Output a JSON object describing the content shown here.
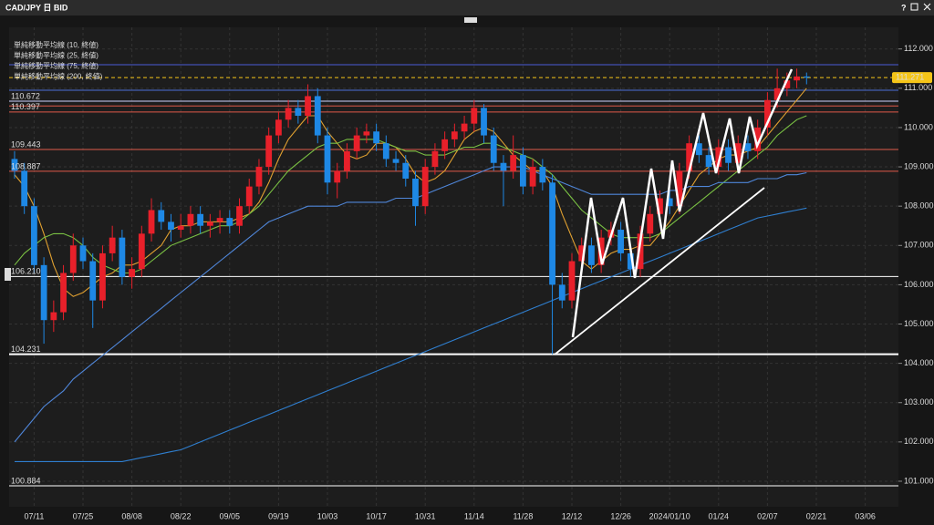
{
  "window": {
    "help": "?"
  },
  "chart_data": {
    "type": "candlestick",
    "title": "CAD/JPY 日 BID",
    "categories": [
      null,
      null,
      "07/11",
      null,
      null,
      null,
      null,
      "07/25",
      null,
      null,
      null,
      null,
      "08/08",
      null,
      null,
      null,
      null,
      "08/22",
      null,
      null,
      null,
      null,
      "09/05",
      null,
      null,
      null,
      null,
      "09/19",
      null,
      null,
      null,
      null,
      "10/03",
      null,
      null,
      null,
      null,
      "10/17",
      null,
      null,
      null,
      null,
      "10/31",
      null,
      null,
      null,
      null,
      "11/14",
      null,
      null,
      null,
      null,
      "11/28",
      null,
      null,
      null,
      null,
      "12/12",
      null,
      null,
      null,
      null,
      "12/26",
      null,
      null,
      null,
      null,
      "2024/01/10",
      null,
      null,
      null,
      null,
      "01/24",
      null,
      null,
      null,
      null,
      "02/07",
      null,
      null,
      null,
      null,
      "02/21",
      null,
      null,
      null,
      null,
      "03/06"
    ],
    "open": [
      109.2,
      108.9,
      108.0,
      106.5,
      105.1,
      105.3,
      106.3,
      107.0,
      106.6,
      105.6,
      106.8,
      107.2,
      106.2,
      106.4,
      107.3,
      107.9,
      107.6,
      107.4,
      107.5,
      107.8,
      107.5,
      107.6,
      107.7,
      107.5,
      108.0,
      108.5,
      109.0,
      109.8,
      110.2,
      110.5,
      110.3,
      110.8,
      109.8,
      108.6,
      108.9,
      109.4,
      109.8,
      109.9,
      109.6,
      109.2,
      109.1,
      108.7,
      108.0,
      109.0,
      109.4,
      109.7,
      109.9,
      110.1,
      110.5,
      109.8,
      109.1,
      108.9,
      109.3,
      108.5,
      109.0,
      108.6,
      106.0,
      105.6,
      106.6,
      107.0,
      106.5,
      107.2,
      107.4,
      106.8,
      106.4,
      107.3,
      107.8,
      108.2,
      108.0,
      108.9,
      109.6,
      109.3,
      109.0,
      109.5,
      109.1,
      109.6,
      109.4,
      110.0,
      110.7,
      111.0,
      111.2,
      111.3,
      null,
      null,
      null,
      null,
      null,
      null
    ],
    "high": [
      109.4,
      109.1,
      108.2,
      106.7,
      105.6,
      106.5,
      107.3,
      107.2,
      106.8,
      107.0,
      107.5,
      107.4,
      106.7,
      107.5,
      108.2,
      108.1,
      107.8,
      107.8,
      108.0,
      108.0,
      107.8,
      107.9,
      107.9,
      108.2,
      108.7,
      109.2,
      110.0,
      110.4,
      110.7,
      110.7,
      111.1,
      111.0,
      110.0,
      109.1,
      109.6,
      110.0,
      110.1,
      110.1,
      109.8,
      109.4,
      109.3,
      108.9,
      109.2,
      109.6,
      109.9,
      110.1,
      110.3,
      110.7,
      110.6,
      110.0,
      109.3,
      109.8,
      109.5,
      109.2,
      109.2,
      108.8,
      106.3,
      106.8,
      107.2,
      107.2,
      107.4,
      107.6,
      107.6,
      107.0,
      107.5,
      108.0,
      108.4,
      108.4,
      109.1,
      109.8,
      109.8,
      109.5,
      109.7,
      109.7,
      109.8,
      109.8,
      110.2,
      110.9,
      111.5,
      111.4,
      111.5,
      111.4,
      null,
      null,
      null,
      null,
      null,
      null
    ],
    "low": [
      108.7,
      107.8,
      106.3,
      104.5,
      104.8,
      105.1,
      106.1,
      106.4,
      104.9,
      105.4,
      106.6,
      106.0,
      105.9,
      106.2,
      107.1,
      107.4,
      107.1,
      107.2,
      107.3,
      107.3,
      107.2,
      107.3,
      107.3,
      107.3,
      107.8,
      108.3,
      108.8,
      109.6,
      110.0,
      110.1,
      110.1,
      109.6,
      108.3,
      108.2,
      108.7,
      109.2,
      109.6,
      109.4,
      109.0,
      108.9,
      108.5,
      107.5,
      107.8,
      108.8,
      109.2,
      109.5,
      109.7,
      109.9,
      109.6,
      108.9,
      108.0,
      108.7,
      108.3,
      108.3,
      108.4,
      104.231,
      105.4,
      105.4,
      106.4,
      106.3,
      106.3,
      107.0,
      106.6,
      106.2,
      106.2,
      107.1,
      107.6,
      107.8,
      107.8,
      108.7,
      109.1,
      108.8,
      108.8,
      108.9,
      108.9,
      109.2,
      109.2,
      109.8,
      110.5,
      110.8,
      111.0,
      111.1,
      null,
      null,
      null,
      null,
      null,
      null
    ],
    "close": [
      108.9,
      108.0,
      106.5,
      105.1,
      105.3,
      106.3,
      107.0,
      106.6,
      105.6,
      106.8,
      107.2,
      106.2,
      106.4,
      107.3,
      107.9,
      107.6,
      107.4,
      107.5,
      107.8,
      107.5,
      107.6,
      107.7,
      107.5,
      108.0,
      108.5,
      109.0,
      109.8,
      110.2,
      110.5,
      110.3,
      110.8,
      109.8,
      108.6,
      108.9,
      109.4,
      109.8,
      109.9,
      109.6,
      109.2,
      109.1,
      108.7,
      108.0,
      109.0,
      109.4,
      109.7,
      109.9,
      110.1,
      110.5,
      109.8,
      109.1,
      108.9,
      109.3,
      108.5,
      109.0,
      108.6,
      106.0,
      105.6,
      106.6,
      107.0,
      106.5,
      107.2,
      107.4,
      106.8,
      106.4,
      107.3,
      107.8,
      108.2,
      108.0,
      108.9,
      109.6,
      109.3,
      109.0,
      109.5,
      109.1,
      109.6,
      109.4,
      110.0,
      110.7,
      111.0,
      111.2,
      111.3,
      111.271,
      null,
      null,
      null,
      null,
      null,
      null
    ],
    "up_color": "#e8202a",
    "down_color": "#1e88e5",
    "series": [
      {
        "name": "単純移動平均線 (10, 終値)",
        "color": "#e0a030",
        "values": [
          108.8,
          108.5,
          108.0,
          107.3,
          106.5,
          105.9,
          105.7,
          105.8,
          106.0,
          106.2,
          106.3,
          106.5,
          106.5,
          106.6,
          106.8,
          107.0,
          107.4,
          107.5,
          107.5,
          107.6,
          107.6,
          107.6,
          107.6,
          107.7,
          107.8,
          108.1,
          108.6,
          109.2,
          109.7,
          110.0,
          110.3,
          110.3,
          109.9,
          109.6,
          109.3,
          109.2,
          109.3,
          109.6,
          109.6,
          109.5,
          109.2,
          108.8,
          108.6,
          108.7,
          108.9,
          109.3,
          109.7,
          109.9,
          110.0,
          109.9,
          109.6,
          109.3,
          109.1,
          108.9,
          108.9,
          108.5,
          107.8,
          107.2,
          106.6,
          106.4,
          106.6,
          106.8,
          106.9,
          106.9,
          107.0,
          107.0,
          107.3,
          107.6,
          108.0,
          108.4,
          108.8,
          109.0,
          109.2,
          109.3,
          109.3,
          109.4,
          109.5,
          109.8,
          110.1,
          110.4,
          110.7,
          111.0,
          null,
          null,
          null,
          null,
          null,
          null
        ]
      },
      {
        "name": "単純移動平均線 (25, 終値)",
        "color": "#7ac143",
        "values": [
          106.5,
          106.8,
          107.0,
          107.2,
          107.3,
          107.3,
          107.2,
          107.0,
          106.7,
          106.5,
          106.4,
          106.3,
          106.3,
          106.4,
          106.6,
          106.8,
          107.0,
          107.1,
          107.2,
          107.3,
          107.4,
          107.5,
          107.5,
          107.6,
          107.8,
          108.0,
          108.3,
          108.6,
          108.9,
          109.1,
          109.3,
          109.5,
          109.6,
          109.6,
          109.7,
          109.7,
          109.7,
          109.7,
          109.6,
          109.5,
          109.4,
          109.4,
          109.3,
          109.3,
          109.3,
          109.4,
          109.5,
          109.5,
          109.6,
          109.6,
          109.5,
          109.4,
          109.3,
          109.2,
          109.0,
          108.8,
          108.5,
          108.2,
          107.9,
          107.7,
          107.5,
          107.3,
          107.2,
          107.2,
          107.2,
          107.2,
          107.3,
          107.5,
          107.7,
          107.9,
          108.1,
          108.3,
          108.5,
          108.7,
          108.9,
          109.1,
          109.3,
          109.5,
          109.8,
          110.0,
          110.2,
          110.3,
          null,
          null,
          null,
          null,
          null,
          null
        ]
      },
      {
        "name": "単純移動平均線 (75, 終値)",
        "color": "#4f86d9",
        "values": [
          102.0,
          102.3,
          102.6,
          102.9,
          103.1,
          103.3,
          103.6,
          103.8,
          104.0,
          104.2,
          104.4,
          104.6,
          104.8,
          105.0,
          105.2,
          105.4,
          105.6,
          105.8,
          106.0,
          106.2,
          106.4,
          106.6,
          106.8,
          107.0,
          107.2,
          107.4,
          107.6,
          107.7,
          107.8,
          107.9,
          108.0,
          108.0,
          108.0,
          108.0,
          108.1,
          108.1,
          108.1,
          108.1,
          108.1,
          108.2,
          108.2,
          108.2,
          108.3,
          108.4,
          108.5,
          108.6,
          108.7,
          108.8,
          108.9,
          109.0,
          109.0,
          109.0,
          109.0,
          108.9,
          108.8,
          108.7,
          108.6,
          108.5,
          108.4,
          108.3,
          108.3,
          108.3,
          108.3,
          108.3,
          108.3,
          108.3,
          108.3,
          108.4,
          108.4,
          108.5,
          108.5,
          108.5,
          108.6,
          108.6,
          108.6,
          108.6,
          108.7,
          108.7,
          108.7,
          108.8,
          108.8,
          108.85,
          null,
          null,
          null,
          null,
          null,
          null
        ]
      },
      {
        "name": "単純移動平均線 (200, 終値)",
        "color": "#2f7fd0",
        "values": [
          101.5,
          101.5,
          101.5,
          101.5,
          101.5,
          101.5,
          101.5,
          101.5,
          101.5,
          101.5,
          101.5,
          101.5,
          101.55,
          101.6,
          101.65,
          101.7,
          101.75,
          101.8,
          101.9,
          102.0,
          102.1,
          102.2,
          102.3,
          102.4,
          102.5,
          102.6,
          102.7,
          102.8,
          102.9,
          103.0,
          103.1,
          103.2,
          103.3,
          103.4,
          103.5,
          103.6,
          103.7,
          103.8,
          103.9,
          104.0,
          104.1,
          104.2,
          104.3,
          104.4,
          104.5,
          104.6,
          104.7,
          104.8,
          104.9,
          105.0,
          105.1,
          105.2,
          105.3,
          105.4,
          105.5,
          105.6,
          105.7,
          105.8,
          105.9,
          106.0,
          106.1,
          106.2,
          106.3,
          106.4,
          106.5,
          106.6,
          106.7,
          106.8,
          106.9,
          107.0,
          107.1,
          107.2,
          107.3,
          107.4,
          107.5,
          107.6,
          107.7,
          107.75,
          107.8,
          107.85,
          107.9,
          107.95,
          null,
          null,
          null,
          null,
          null,
          null
        ]
      }
    ],
    "hlines": [
      {
        "value": 111.6,
        "color": "#4b5bd6"
      },
      {
        "value": 110.95,
        "color": "#4b6fd6"
      },
      {
        "value": 110.672,
        "label": "110.672",
        "color": "#d0d4ff"
      },
      {
        "value": 110.55,
        "color": "#e05a4a"
      },
      {
        "value": 110.397,
        "label": "110.397",
        "color": "#e05a4a"
      },
      {
        "value": 109.443,
        "label": "109.443",
        "color": "#e05a4a"
      },
      {
        "value": 108.887,
        "label": "108.887",
        "color": "#e05a4a"
      },
      {
        "value": 106.21,
        "label": "106.210",
        "color": "#ffffff"
      },
      {
        "value": 104.231,
        "label": "104.231",
        "color": "#ffffff"
      },
      {
        "value": 100.884,
        "label": "100.884",
        "color": "#ffffff"
      }
    ],
    "last_price": {
      "value": 111.271,
      "label": "111.271",
      "color": "#f5c518"
    },
    "ylim": [
      100.35,
      112.55
    ],
    "yticks": [
      {
        "value": 101,
        "label": "101.000"
      },
      {
        "value": 102,
        "label": "102.000"
      },
      {
        "value": 103,
        "label": "103.000"
      },
      {
        "value": 104,
        "label": "104.000"
      },
      {
        "value": 105,
        "label": "105.000"
      },
      {
        "value": 106,
        "label": "106.000"
      },
      {
        "value": 107,
        "label": "107.000"
      },
      {
        "value": 108,
        "label": "108.000"
      },
      {
        "value": 109,
        "label": "109.000"
      },
      {
        "value": 110,
        "label": "110.000"
      },
      {
        "value": 111,
        "label": "111.000"
      },
      {
        "value": 112,
        "label": "112.000"
      }
    ],
    "grid": true
  }
}
